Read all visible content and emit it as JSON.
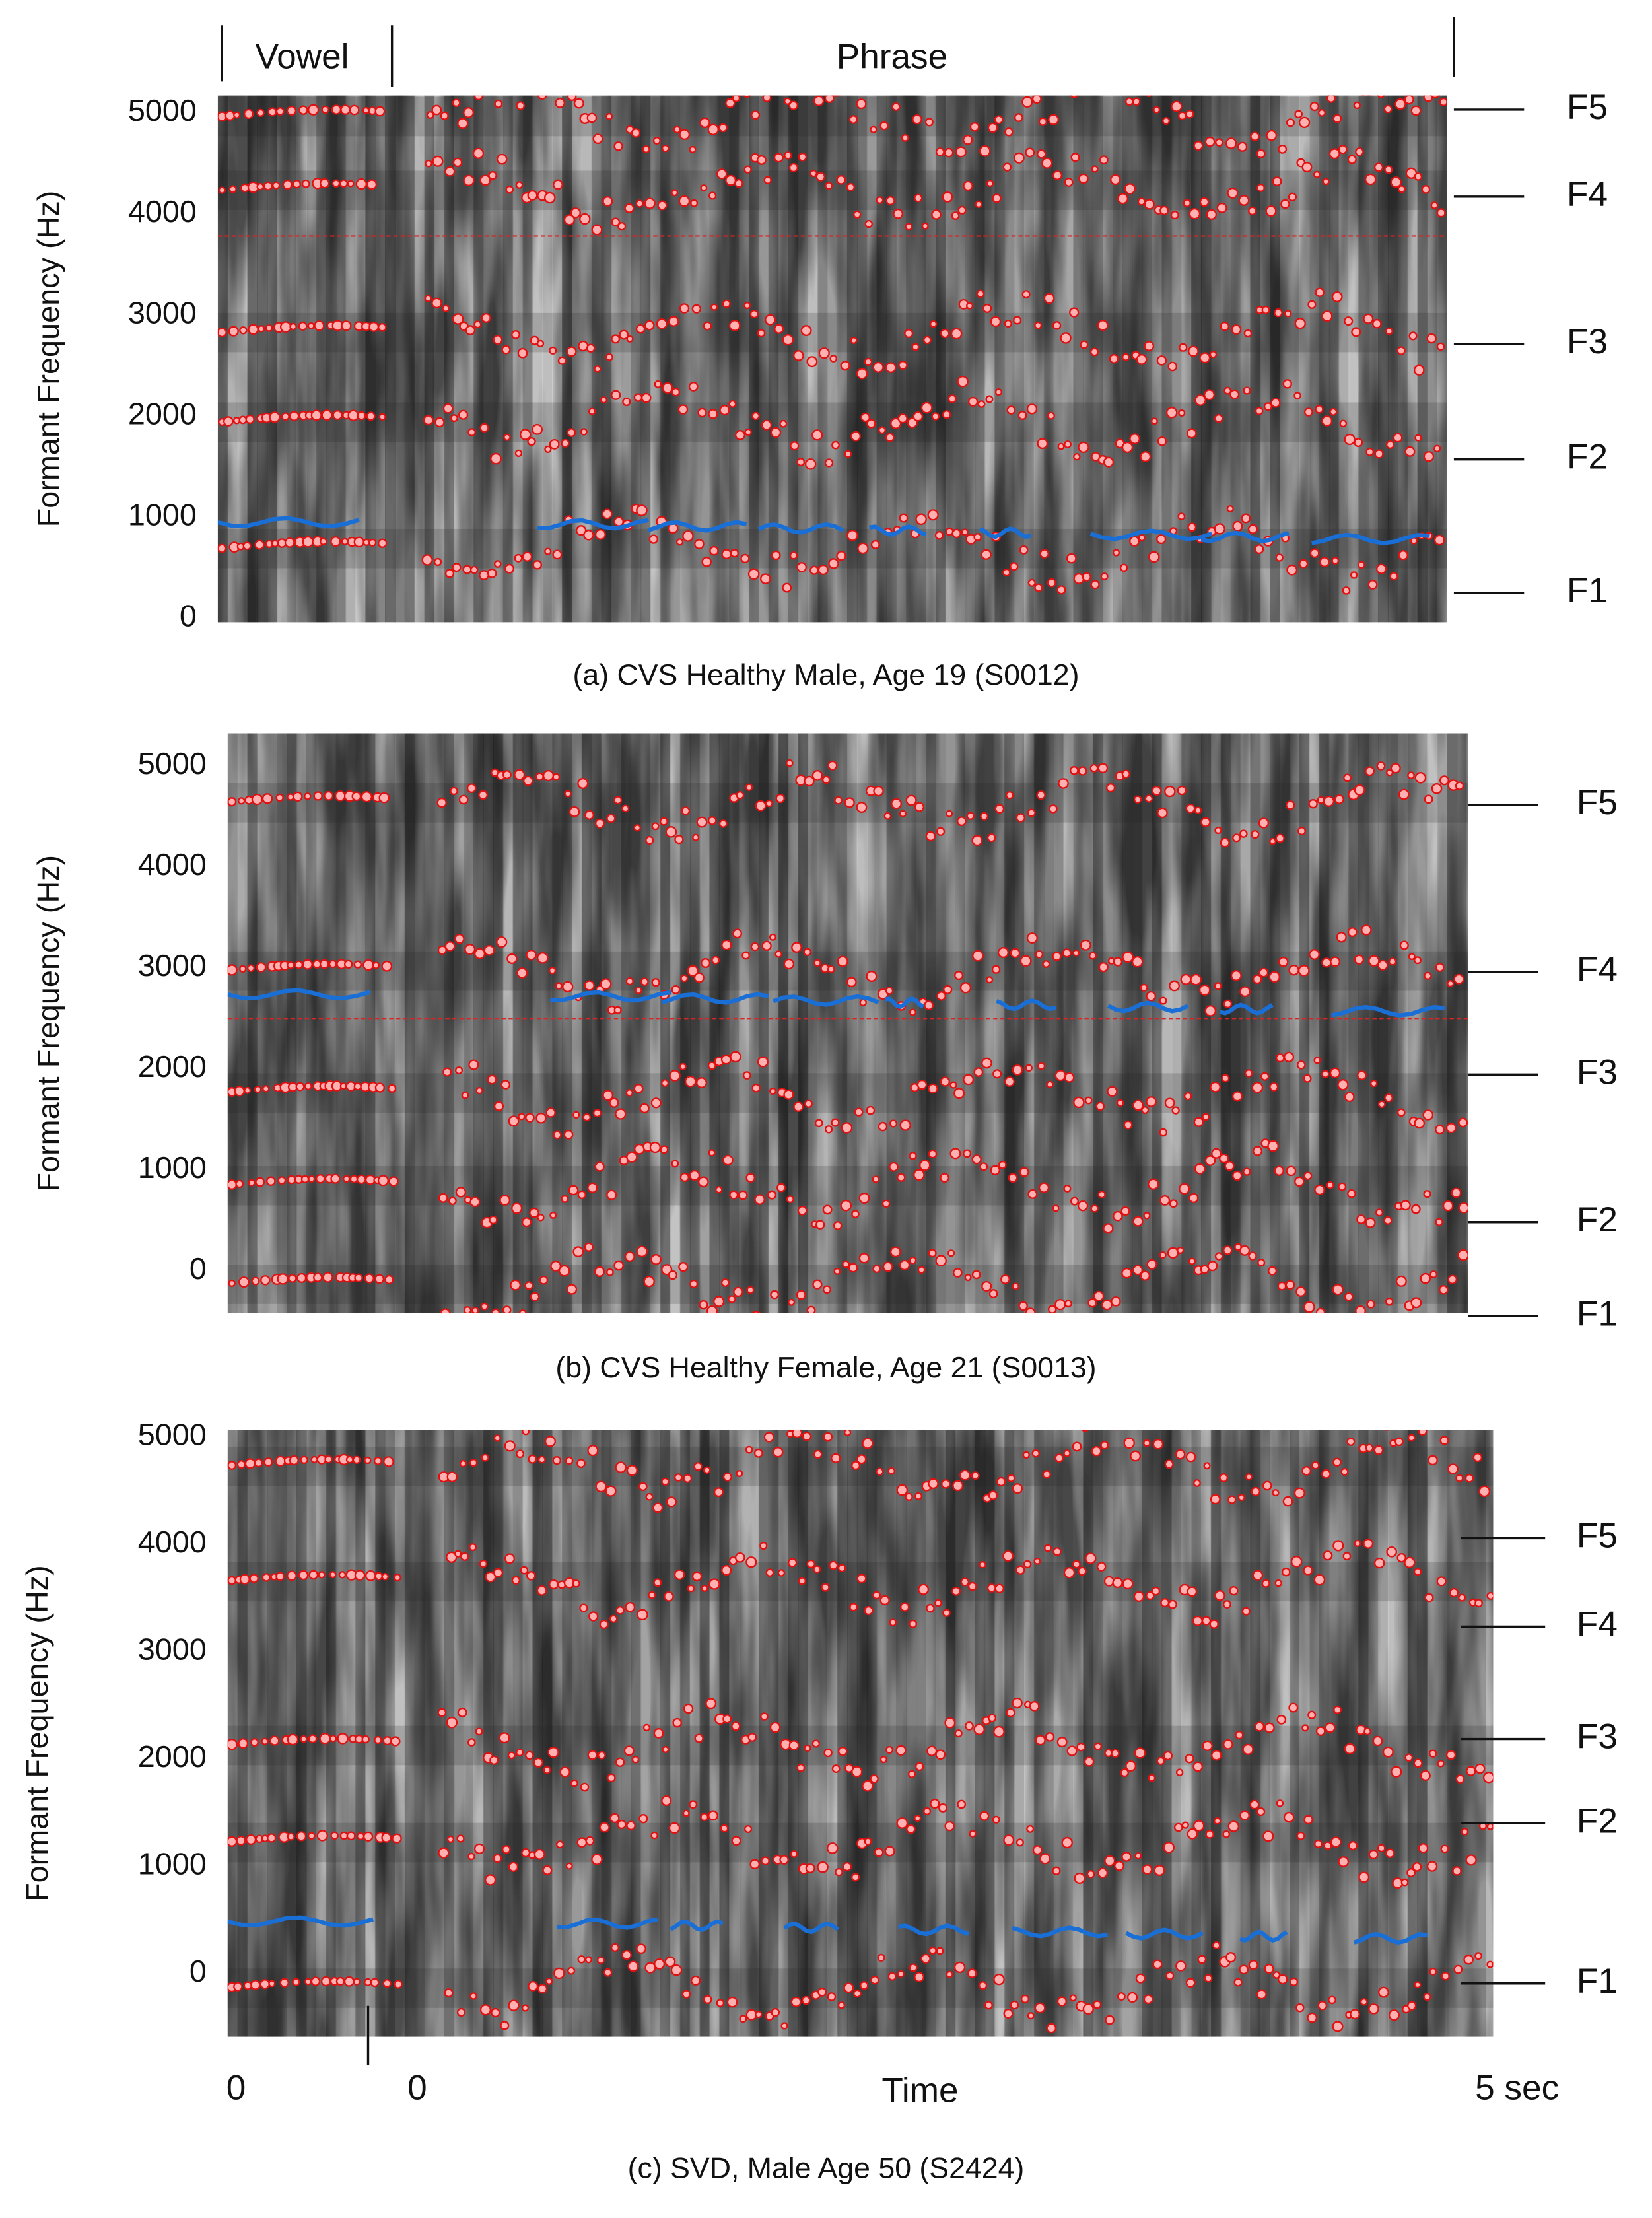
{
  "chart_data": [
    {
      "type": "spectrogram",
      "segments": [
        "Vowel",
        "Phrase"
      ],
      "ylabel": "Formant Frequency (Hz)",
      "ylim": [
        -40,
        5170
      ],
      "yticks": [
        0,
        1000,
        2000,
        3000,
        4000,
        5000
      ],
      "annotations": [
        "F5",
        "F4",
        "F3",
        "F2",
        "F1"
      ],
      "caption": "(a) CVS Healthy Male, Age 19 (S0012)"
    },
    {
      "type": "spectrogram",
      "ylabel": "Formant Frequency (Hz)",
      "ylim": [
        -420,
        5320
      ],
      "yticks": [
        0,
        1000,
        2000,
        3000,
        4000,
        5000
      ],
      "annotations": [
        "F5",
        "F4",
        "F3",
        "F2",
        "F1"
      ],
      "caption": "(b) CVS Healthy Female, Age 21 (S0013)"
    },
    {
      "type": "spectrogram",
      "ylabel": "Formant Frequency (Hz)",
      "ylim": [
        -590,
        5065
      ],
      "yticks": [
        0,
        1000,
        2000,
        3000,
        4000,
        5000
      ],
      "annotations": [
        "F5",
        "F4",
        "F3",
        "F2",
        "F1"
      ],
      "xtick_labels": [
        "0",
        "0",
        "5 sec"
      ],
      "xlabel": "Time",
      "caption": "(c) SVD, Male Age 50 (S2424)"
    }
  ]
}
